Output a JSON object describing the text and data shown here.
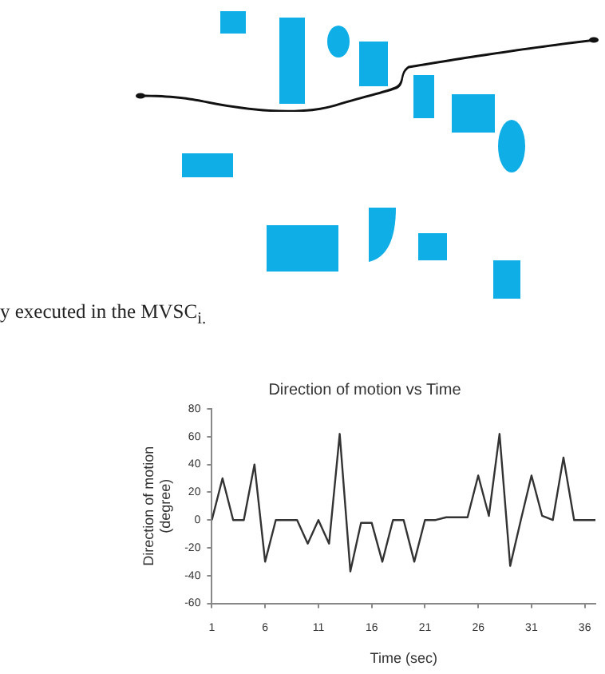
{
  "chart_data": {
    "type": "line",
    "title": "Direction of motion vs Time",
    "xlabel": "Time (sec)",
    "ylabel": "Direction of motion (degree)",
    "x": [
      1,
      2,
      3,
      4,
      5,
      6,
      7,
      8,
      9,
      10,
      11,
      12,
      13,
      14,
      15,
      16,
      17,
      18,
      19,
      20,
      21,
      22,
      23,
      24,
      25,
      26,
      27,
      28,
      29,
      30,
      31,
      32,
      33,
      34,
      35,
      36,
      37
    ],
    "series": [
      {
        "color": "#333333",
        "values": [
          0,
          30,
          0,
          0,
          40,
          -30,
          0,
          0,
          0,
          -17,
          0,
          -17,
          62,
          -37,
          -2,
          -2,
          -30,
          0,
          0,
          -30,
          0,
          0,
          2,
          2,
          2,
          32,
          3,
          62,
          -33,
          0,
          32,
          3,
          0,
          45,
          0,
          0,
          0
        ]
      }
    ],
    "xlim": [
      1,
      37
    ],
    "xticks": [
      1,
      6,
      11,
      16,
      21,
      26,
      31,
      36
    ],
    "ylim": [
      -60,
      80
    ],
    "yticks": [
      -60,
      -40,
      -20,
      0,
      20,
      40,
      60,
      80
    ],
    "grid": false,
    "legend": false,
    "marker": "none",
    "line_style": "solid",
    "annotations": [
      "y executed in the MVSC$_{i.}$"
    ]
  }
}
